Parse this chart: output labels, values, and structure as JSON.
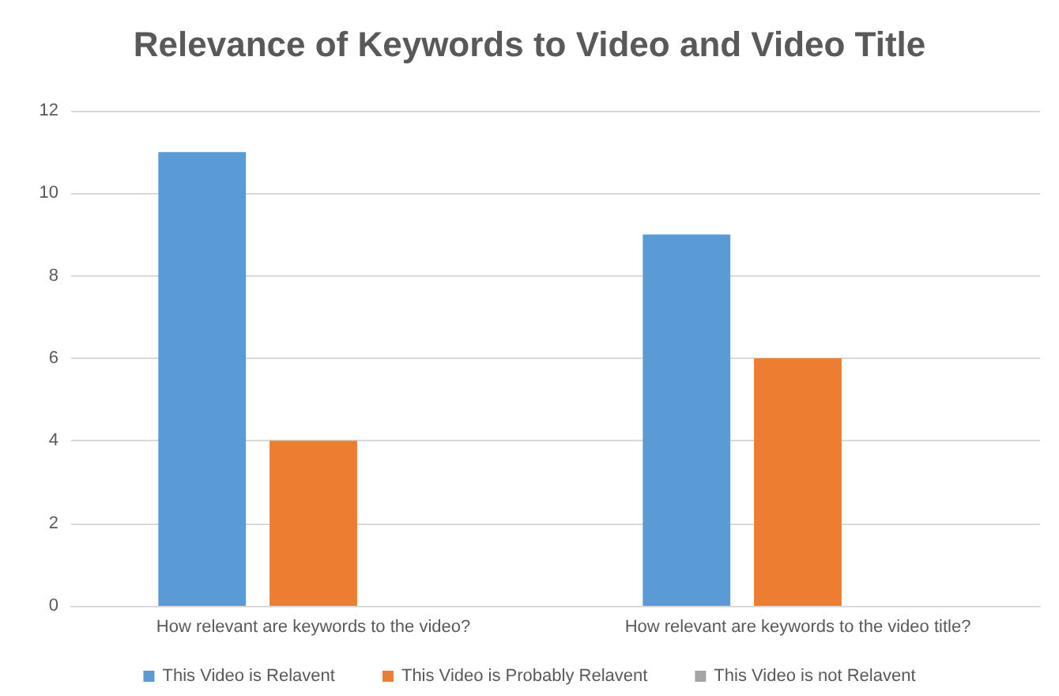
{
  "chart_data": {
    "type": "bar",
    "title": "Relevance of Keywords to Video and Video Title",
    "categories": [
      "How relevant are keywords to the video?",
      "How relevant are keywords to the video title?"
    ],
    "series": [
      {
        "name": "This Video is Relavent",
        "color": "#5b9bd5",
        "values": [
          11,
          9
        ]
      },
      {
        "name": "This Video is Probably Relavent",
        "color": "#ed7d31",
        "values": [
          4,
          6
        ]
      },
      {
        "name": "This Video is not Relavent",
        "color": "#a5a5a5",
        "values": [
          0,
          0
        ]
      }
    ],
    "ylim": [
      0,
      12
    ],
    "yticks": [
      0,
      2,
      4,
      6,
      8,
      10,
      12
    ],
    "grid": "y",
    "legend": "bottom"
  }
}
